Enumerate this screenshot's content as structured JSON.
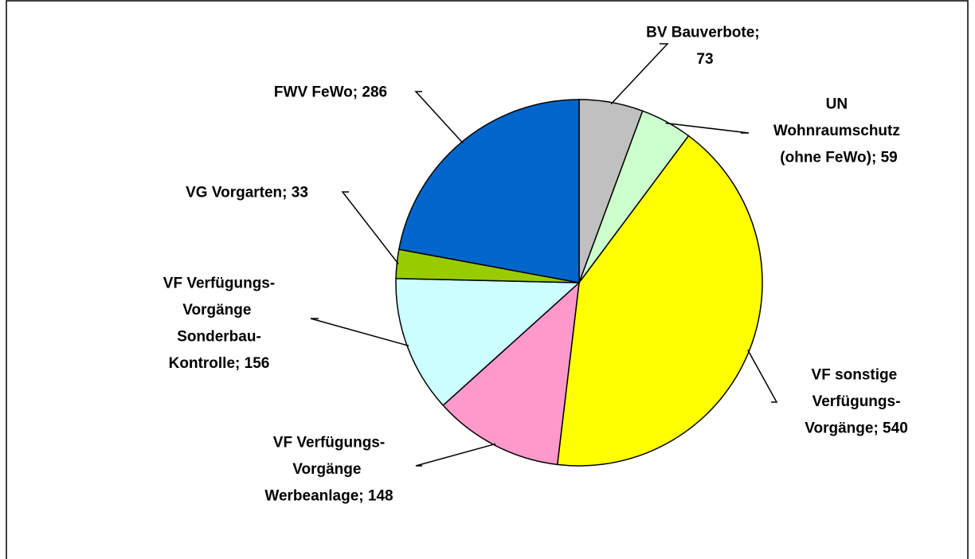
{
  "chart_data": {
    "type": "pie",
    "values": [
      73,
      59,
      540,
      148,
      156,
      33,
      286
    ],
    "value_labels": [
      "BV Bauverbote; 73",
      "UN Wohnraumschutz (ohne FeWo); 59",
      "VF sonstige Verfügungs-Vorgänge; 540",
      "VF Verfügungs-Vorgänge Werbeanlage; 148",
      "VF Verfügungs-Vorgänge Sonderbau-Kontrolle; 156",
      "VG Vorgarten; 33",
      "FWV FeWo; 286"
    ],
    "colors": [
      "#c0c0c0",
      "#ccffcc",
      "#ffff00",
      "#ff99cc",
      "#ccffff",
      "#99cc00",
      "#0066cc"
    ]
  }
}
